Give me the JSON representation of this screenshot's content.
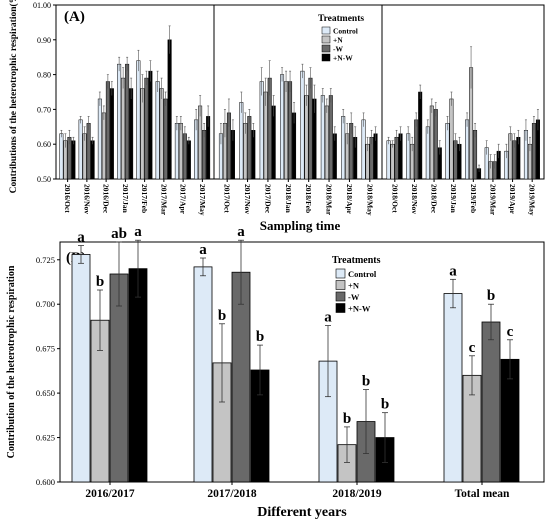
{
  "chart_data": [
    {
      "panel_label": "(A)",
      "type": "bar",
      "xlabel": "Sampling time",
      "ylabel": "Contributions of the heterotrophic respiration(%)",
      "ylim": [
        0.5,
        1.0
      ],
      "yticks": [
        0.5,
        0.6,
        0.7,
        0.8,
        0.9,
        1.0
      ],
      "ytick_labels": [
        "0.50",
        "0.60",
        "0.70",
        "0.80",
        "0.90",
        "01.00"
      ],
      "legend_title": "Treatments",
      "legend_position": "top-right",
      "periods": [
        {
          "categories": [
            "2016/Oct",
            "2016/Nov",
            "2016/Dec",
            "2017/Jan",
            "2017/Feb",
            "2017/Mar",
            "2017/Apr",
            "2017/May"
          ],
          "series": [
            {
              "name": "Control",
              "values": [
                0.63,
                0.67,
                0.73,
                0.83,
                0.84,
                0.78,
                0.66,
                0.67
              ],
              "errors": [
                0.01,
                0.01,
                0.02,
                0.02,
                0.03,
                0.03,
                0.02,
                0.03
              ]
            },
            {
              "name": "+N",
              "values": [
                0.61,
                0.63,
                0.69,
                0.79,
                0.76,
                0.76,
                0.66,
                0.71
              ],
              "errors": [
                0.02,
                0.02,
                0.02,
                0.03,
                0.04,
                0.03,
                0.02,
                0.03
              ]
            },
            {
              "name": "-W",
              "values": [
                0.62,
                0.66,
                0.78,
                0.83,
                0.79,
                0.73,
                0.63,
                0.64
              ],
              "errors": [
                0.02,
                0.02,
                0.02,
                0.02,
                0.02,
                0.02,
                0.02,
                0.02
              ]
            },
            {
              "name": "+N-W",
              "values": [
                0.61,
                0.61,
                0.76,
                0.76,
                0.81,
                0.9,
                0.61,
                0.68
              ],
              "errors": [
                0.01,
                0.01,
                0.02,
                0.03,
                0.03,
                0.04,
                0.01,
                0.03
              ]
            }
          ]
        },
        {
          "categories": [
            "2017/Oct",
            "2017/Nov",
            "2017/Dec",
            "2018/Jan",
            "2018/Feb",
            "2018/Mar",
            "2018/Apr",
            "2018/May"
          ],
          "series": [
            {
              "name": "Control",
              "values": [
                0.63,
                0.72,
                0.78,
                0.8,
                0.81,
                0.74,
                0.68,
                0.67
              ],
              "errors": [
                0.03,
                0.03,
                0.04,
                0.02,
                0.02,
                0.02,
                0.02,
                0.02
              ]
            },
            {
              "name": "+N",
              "values": [
                0.66,
                0.66,
                0.75,
                0.78,
                0.74,
                0.71,
                0.63,
                0.6
              ],
              "errors": [
                0.04,
                0.03,
                0.04,
                0.03,
                0.03,
                0.02,
                0.03,
                0.02
              ]
            },
            {
              "name": "-W",
              "values": [
                0.69,
                0.68,
                0.79,
                0.78,
                0.79,
                0.74,
                0.66,
                0.62
              ],
              "errors": [
                0.04,
                0.02,
                0.05,
                0.03,
                0.03,
                0.02,
                0.03,
                0.02
              ]
            },
            {
              "name": "+N-W",
              "values": [
                0.64,
                0.64,
                0.71,
                0.69,
                0.73,
                0.63,
                0.62,
                0.63
              ],
              "errors": [
                0.03,
                0.02,
                0.03,
                0.03,
                0.04,
                0.02,
                0.03,
                0.02
              ]
            }
          ]
        },
        {
          "categories": [
            "2018/Oct",
            "2018/Nov",
            "2018/Dec",
            "2019/Jan",
            "2019/Feb",
            "2019/Mar",
            "2019/Apr",
            "2019/May"
          ],
          "series": [
            {
              "name": "Control",
              "values": [
                0.61,
                0.63,
                0.65,
                0.66,
                0.67,
                0.59,
                0.58,
                0.64
              ],
              "errors": [
                0.01,
                0.02,
                0.02,
                0.02,
                0.02,
                0.02,
                0.02,
                0.03
              ]
            },
            {
              "name": "+N",
              "values": [
                0.6,
                0.6,
                0.71,
                0.73,
                0.82,
                0.55,
                0.63,
                0.6
              ],
              "errors": [
                0.01,
                0.02,
                0.02,
                0.02,
                0.06,
                0.02,
                0.02,
                0.02
              ]
            },
            {
              "name": "-W",
              "values": [
                0.62,
                0.67,
                0.7,
                0.61,
                0.64,
                0.55,
                0.61,
                0.66
              ],
              "errors": [
                0.02,
                0.02,
                0.02,
                0.02,
                0.02,
                0.02,
                0.02,
                0.02
              ]
            },
            {
              "name": "+N-W",
              "values": [
                0.63,
                0.75,
                0.59,
                0.6,
                0.53,
                0.58,
                0.62,
                0.67
              ],
              "errors": [
                0.02,
                0.02,
                0.02,
                0.02,
                0.01,
                0.02,
                0.02,
                0.03
              ]
            }
          ]
        }
      ]
    },
    {
      "panel_label": "(B)",
      "type": "bar",
      "xlabel": "Different years",
      "ylabel": "Contribution of the heterotrophic respiration",
      "ylim": [
        0.6,
        0.735
      ],
      "yticks": [
        0.6,
        0.625,
        0.65,
        0.675,
        0.7,
        0.725
      ],
      "ytick_labels": [
        "0.600",
        "0.625",
        "0.650",
        "0.675",
        "0.700",
        "0.725"
      ],
      "legend_title": "Treatments",
      "legend_position": "top-right",
      "categories": [
        "2016/2017",
        "2017/2018",
        "2018/2019",
        "Total mean"
      ],
      "series": [
        {
          "name": "Control",
          "values": [
            0.728,
            0.721,
            0.668,
            0.706
          ],
          "errors": [
            0.005,
            0.005,
            0.02,
            0.008
          ],
          "letters": [
            "a",
            "a",
            "a",
            "a"
          ]
        },
        {
          "name": "+N",
          "values": [
            0.691,
            0.667,
            0.621,
            0.66
          ],
          "errors": [
            0.017,
            0.022,
            0.01,
            0.011
          ],
          "letters": [
            "b",
            "b",
            "b",
            "c"
          ]
        },
        {
          "name": "-W",
          "values": [
            0.717,
            0.718,
            0.634,
            0.69
          ],
          "errors": [
            0.018,
            0.018,
            0.018,
            0.01
          ],
          "letters": [
            "ab",
            "a",
            "b",
            "b"
          ]
        },
        {
          "name": "+N-W",
          "values": [
            0.72,
            0.663,
            0.625,
            0.669
          ],
          "errors": [
            0.016,
            0.014,
            0.014,
            0.011
          ],
          "letters": [
            "a",
            "b",
            "b",
            "c"
          ]
        }
      ]
    }
  ],
  "series_colors": {
    "Control": "#ddeaf7",
    "+N": "#c4c4c4",
    "-W": "#696969",
    "+N-W": "#000000"
  }
}
